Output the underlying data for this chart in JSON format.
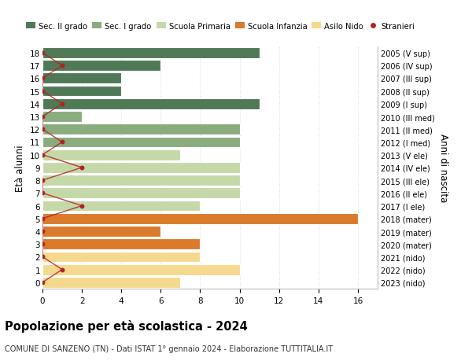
{
  "ages": [
    18,
    17,
    16,
    15,
    14,
    13,
    12,
    11,
    10,
    9,
    8,
    7,
    6,
    5,
    4,
    3,
    2,
    1,
    0
  ],
  "right_labels": [
    "2005 (V sup)",
    "2006 (IV sup)",
    "2007 (III sup)",
    "2008 (II sup)",
    "2009 (I sup)",
    "2010 (III med)",
    "2011 (II med)",
    "2012 (I med)",
    "2013 (V ele)",
    "2014 (IV ele)",
    "2015 (III ele)",
    "2016 (II ele)",
    "2017 (I ele)",
    "2018 (mater)",
    "2019 (mater)",
    "2020 (mater)",
    "2021 (nido)",
    "2022 (nido)",
    "2023 (nido)"
  ],
  "bar_values": [
    11,
    6,
    4,
    4,
    11,
    2,
    10,
    10,
    7,
    10,
    10,
    10,
    8,
    16,
    6,
    8,
    8,
    10,
    7
  ],
  "bar_colors": [
    "#507a57",
    "#507a57",
    "#507a57",
    "#507a57",
    "#507a57",
    "#8aac7e",
    "#8aac7e",
    "#8aac7e",
    "#c5d9a8",
    "#c5d9a8",
    "#c5d9a8",
    "#c5d9a8",
    "#c5d9a8",
    "#d97b2b",
    "#d97b2b",
    "#d97b2b",
    "#f5d98e",
    "#f5d98e",
    "#f5d98e"
  ],
  "stranieri_x": [
    0,
    1,
    0,
    0,
    1,
    0,
    0,
    1,
    0,
    2,
    0,
    0,
    2,
    0,
    0,
    0,
    0,
    1,
    0
  ],
  "xlim": [
    0,
    17
  ],
  "xticks": [
    0,
    2,
    4,
    6,
    8,
    10,
    12,
    14,
    16
  ],
  "ylabel": "Età alunni",
  "right_ylabel": "Anni di nascita",
  "title": "Popolazione per età scolastica - 2024",
  "subtitle": "COMUNE DI SANZENO (TN) - Dati ISTAT 1° gennaio 2024 - Elaborazione TUTTITALIA.IT",
  "legend_labels": [
    "Sec. II grado",
    "Sec. I grado",
    "Scuola Primaria",
    "Scuola Infanzia",
    "Asilo Nido",
    "Stranieri"
  ],
  "legend_colors": [
    "#507a57",
    "#8aac7e",
    "#c5d9a8",
    "#d97b2b",
    "#f5d98e",
    "#b22222"
  ],
  "stranieri_color": "#b22222",
  "background_color": "#ffffff",
  "grid_color": "#dddddd"
}
